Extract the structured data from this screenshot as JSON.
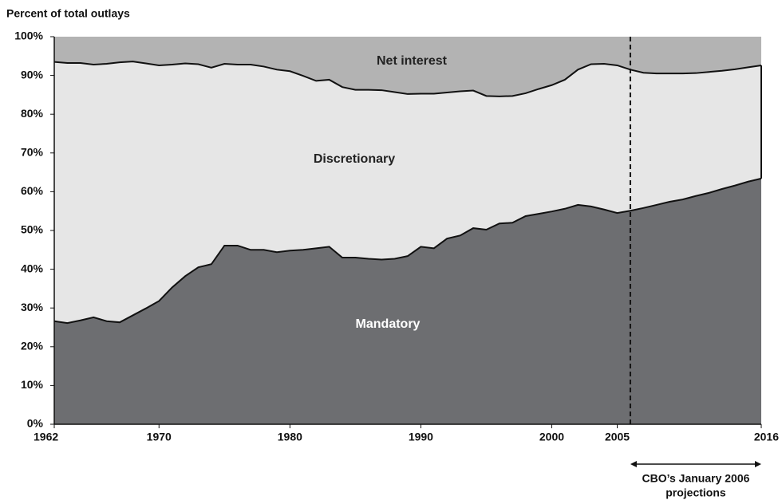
{
  "chart_data": {
    "type": "stacked_area",
    "y_title": "Percent of total outlays",
    "x": [
      1962,
      1963,
      1964,
      1965,
      1966,
      1967,
      1968,
      1969,
      1970,
      1971,
      1972,
      1973,
      1974,
      1975,
      1976,
      1977,
      1978,
      1979,
      1980,
      1981,
      1982,
      1983,
      1984,
      1985,
      1986,
      1987,
      1988,
      1989,
      1990,
      1991,
      1992,
      1993,
      1994,
      1995,
      1996,
      1997,
      1998,
      1999,
      2000,
      2001,
      2002,
      2003,
      2004,
      2005,
      2006,
      2007,
      2008,
      2009,
      2010,
      2011,
      2012,
      2013,
      2014,
      2015,
      2016
    ],
    "series": [
      {
        "name": "Mandatory",
        "color": "#6d6e71",
        "label_color": "#ffffff",
        "values": [
          26.6,
          26.1,
          26.8,
          27.6,
          26.6,
          26.3,
          28.1,
          29.9,
          31.8,
          35.3,
          38.2,
          40.5,
          41.3,
          46.1,
          46.1,
          45.0,
          45.0,
          44.4,
          44.8,
          45.0,
          45.4,
          45.8,
          43.0,
          43.0,
          42.7,
          42.5,
          42.7,
          43.4,
          45.8,
          45.4,
          47.9,
          48.7,
          50.6,
          50.2,
          51.8,
          52.0,
          53.7,
          54.3,
          54.9,
          55.6,
          56.6,
          56.2,
          55.4,
          54.5,
          55.1,
          55.8,
          56.6,
          57.4,
          58.0,
          58.9,
          59.7,
          60.7,
          61.6,
          62.6,
          63.4
        ]
      },
      {
        "name": "Discretionary",
        "color": "#e6e6e6",
        "label_color": "#222222",
        "values": [
          66.9,
          67.1,
          66.4,
          65.2,
          66.4,
          67.1,
          65.5,
          63.2,
          60.8,
          57.5,
          54.9,
          52.4,
          50.7,
          46.9,
          46.7,
          47.8,
          47.3,
          47.1,
          46.3,
          44.9,
          43.2,
          43.1,
          44.0,
          43.3,
          43.6,
          43.7,
          43.0,
          41.8,
          39.5,
          39.9,
          37.7,
          37.2,
          35.5,
          34.5,
          32.8,
          32.7,
          31.7,
          32.2,
          32.6,
          33.3,
          34.9,
          36.7,
          37.6,
          38.1,
          36.4,
          34.9,
          33.9,
          33.1,
          32.5,
          31.7,
          31.2,
          30.5,
          30.0,
          29.5,
          29.2
        ]
      },
      {
        "name": "Net interest",
        "color": "#b3b3b3",
        "label_color": "#222222",
        "values": [
          6.5,
          6.8,
          6.8,
          7.2,
          7.0,
          6.6,
          6.4,
          6.9,
          7.4,
          7.2,
          6.9,
          7.1,
          8.0,
          7.0,
          7.2,
          7.2,
          7.7,
          8.5,
          8.9,
          10.1,
          11.4,
          11.1,
          13.0,
          13.7,
          13.7,
          13.8,
          14.3,
          14.8,
          14.7,
          14.7,
          14.4,
          14.1,
          13.9,
          15.3,
          15.4,
          15.3,
          14.6,
          13.5,
          12.5,
          11.1,
          8.5,
          7.1,
          7.0,
          7.4,
          8.5,
          9.3,
          9.5,
          9.5,
          9.5,
          9.4,
          9.1,
          8.8,
          8.4,
          7.9,
          7.4
        ]
      }
    ],
    "xlim": [
      1962,
      2016
    ],
    "xticks": [
      1962,
      1970,
      1980,
      1990,
      2000,
      2005,
      2016
    ],
    "ylim": [
      0,
      100
    ],
    "yticks": [
      {
        "value": 0,
        "label": "0%"
      },
      {
        "value": 10,
        "label": "10%"
      },
      {
        "value": 20,
        "label": "20%"
      },
      {
        "value": 30,
        "label": "30%"
      },
      {
        "value": 40,
        "label": "40%"
      },
      {
        "value": 50,
        "label": "50%"
      },
      {
        "value": 60,
        "label": "60%"
      },
      {
        "value": 70,
        "label": "70%"
      },
      {
        "value": 80,
        "label": "80%"
      },
      {
        "value": 90,
        "label": "90%"
      },
      {
        "value": 100,
        "label": "100%"
      }
    ],
    "annotation": {
      "lines": [
        "CBO’s January 2006",
        "projections"
      ],
      "x_start": 2006,
      "x_end": 2016
    }
  }
}
